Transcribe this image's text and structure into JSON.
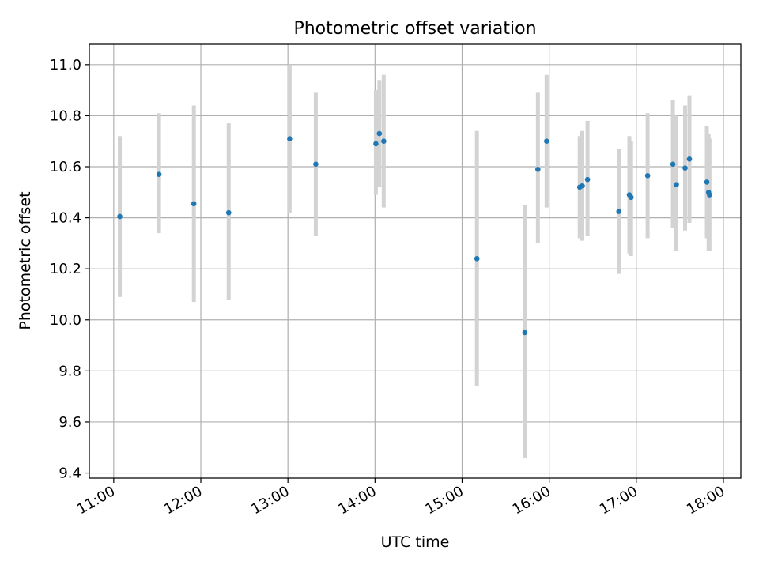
{
  "chart_data": {
    "type": "scatter",
    "title": "Photometric offset variation",
    "xlabel": "UTC time",
    "ylabel": "Photometric offset",
    "x_unit": "hours UTC",
    "xlim": [
      10.72,
      18.2
    ],
    "ylim": [
      9.38,
      11.08
    ],
    "x_ticks": [
      11,
      12,
      13,
      14,
      15,
      16,
      17,
      18
    ],
    "x_tick_labels": [
      "11:00",
      "12:00",
      "13:00",
      "14:00",
      "15:00",
      "16:00",
      "17:00",
      "18:00"
    ],
    "y_ticks": [
      9.4,
      9.6,
      9.8,
      10.0,
      10.2,
      10.4,
      10.6,
      10.8,
      11.0
    ],
    "y_tick_labels": [
      "9.4",
      "9.6",
      "9.8",
      "10.0",
      "10.2",
      "10.4",
      "10.6",
      "10.8",
      "11.0"
    ],
    "grid": true,
    "colors": {
      "point": "#1f77b4",
      "errorbar": "#d3d3d3",
      "grid": "#b0b0b0"
    },
    "series": [
      {
        "points": [
          {
            "x": 11.07,
            "y": 10.405,
            "lo": 10.09,
            "hi": 10.72
          },
          {
            "x": 11.52,
            "y": 10.57,
            "lo": 10.34,
            "hi": 10.81
          },
          {
            "x": 11.92,
            "y": 10.455,
            "lo": 10.07,
            "hi": 10.84
          },
          {
            "x": 12.32,
            "y": 10.42,
            "lo": 10.08,
            "hi": 10.77
          },
          {
            "x": 13.02,
            "y": 10.71,
            "lo": 10.42,
            "hi": 11.0
          },
          {
            "x": 13.32,
            "y": 10.61,
            "lo": 10.33,
            "hi": 10.89
          },
          {
            "x": 14.01,
            "y": 10.69,
            "lo": 10.49,
            "hi": 10.9
          },
          {
            "x": 14.05,
            "y": 10.73,
            "lo": 10.52,
            "hi": 10.94
          },
          {
            "x": 14.1,
            "y": 10.7,
            "lo": 10.44,
            "hi": 10.96
          },
          {
            "x": 15.17,
            "y": 10.24,
            "lo": 9.74,
            "hi": 10.74
          },
          {
            "x": 15.72,
            "y": 9.95,
            "lo": 9.46,
            "hi": 10.45
          },
          {
            "x": 15.87,
            "y": 10.59,
            "lo": 10.3,
            "hi": 10.89
          },
          {
            "x": 15.97,
            "y": 10.7,
            "lo": 10.44,
            "hi": 10.96
          },
          {
            "x": 16.35,
            "y": 10.52,
            "lo": 10.32,
            "hi": 10.72
          },
          {
            "x": 16.38,
            "y": 10.525,
            "lo": 10.31,
            "hi": 10.74
          },
          {
            "x": 16.44,
            "y": 10.55,
            "lo": 10.33,
            "hi": 10.78
          },
          {
            "x": 16.8,
            "y": 10.425,
            "lo": 10.18,
            "hi": 10.67
          },
          {
            "x": 16.92,
            "y": 10.49,
            "lo": 10.26,
            "hi": 10.72
          },
          {
            "x": 16.94,
            "y": 10.48,
            "lo": 10.25,
            "hi": 10.7
          },
          {
            "x": 17.13,
            "y": 10.565,
            "lo": 10.32,
            "hi": 10.81
          },
          {
            "x": 17.42,
            "y": 10.61,
            "lo": 10.36,
            "hi": 10.86
          },
          {
            "x": 17.46,
            "y": 10.53,
            "lo": 10.27,
            "hi": 10.8
          },
          {
            "x": 17.56,
            "y": 10.595,
            "lo": 10.35,
            "hi": 10.84
          },
          {
            "x": 17.61,
            "y": 10.63,
            "lo": 10.38,
            "hi": 10.88
          },
          {
            "x": 17.81,
            "y": 10.54,
            "lo": 10.32,
            "hi": 10.76
          },
          {
            "x": 17.83,
            "y": 10.5,
            "lo": 10.27,
            "hi": 10.73
          },
          {
            "x": 17.84,
            "y": 10.49,
            "lo": 10.27,
            "hi": 10.71
          }
        ]
      }
    ]
  }
}
